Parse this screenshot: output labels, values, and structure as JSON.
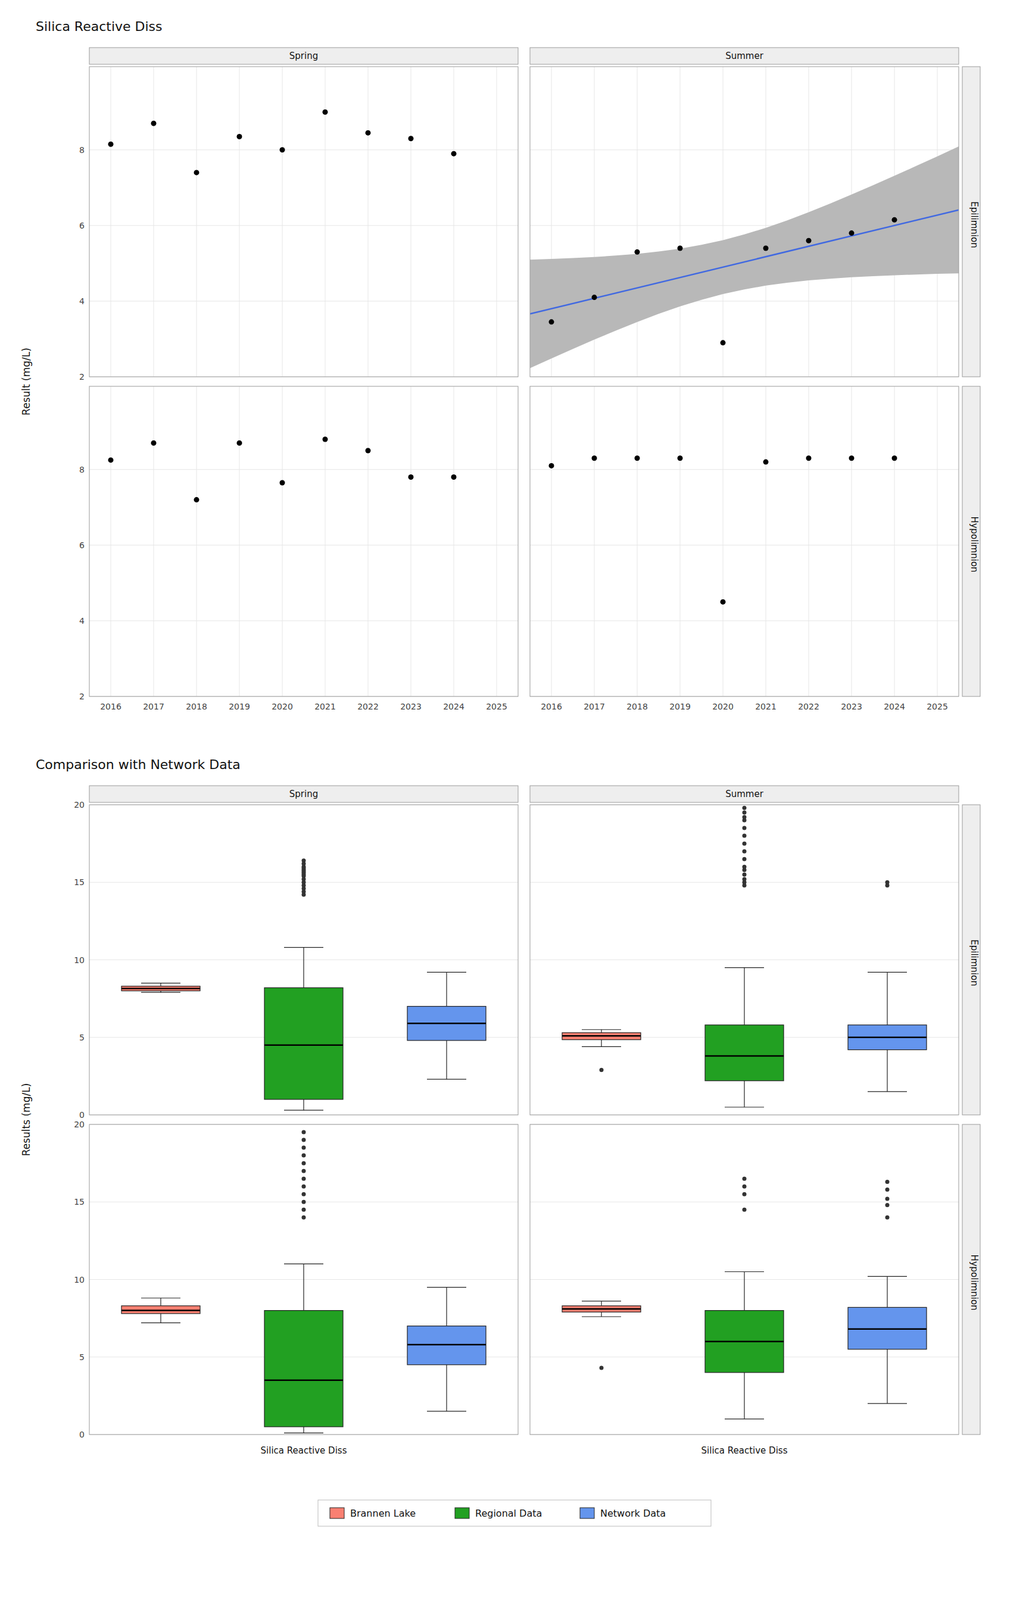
{
  "chart_data": [
    {
      "type": "scatter",
      "title": "Silica Reactive Diss",
      "ylabel": "Result (mg/L)",
      "xlim": [
        2015.5,
        2025.5
      ],
      "xticks": [
        2016,
        2017,
        2018,
        2019,
        2020,
        2021,
        2022,
        2023,
        2024,
        2025
      ],
      "ylim": [
        2.0,
        10.2
      ],
      "yticks": [
        2,
        4,
        6,
        8
      ],
      "grid": true,
      "columns": [
        "Spring",
        "Summer"
      ],
      "rows": [
        "Epilimnion",
        "Hypolimnion"
      ],
      "panels": [
        [
          {
            "series": [
              {
                "type": "scatter",
                "color": "#000000",
                "x": [
                  2016,
                  2017,
                  2018,
                  2019,
                  2020,
                  2021,
                  2022,
                  2023,
                  2024
                ],
                "values": [
                  8.15,
                  8.7,
                  7.4,
                  8.35,
                  8.0,
                  9.0,
                  8.45,
                  8.3,
                  7.9
                ]
              }
            ]
          },
          {
            "series": [
              {
                "type": "area",
                "color": "#b8b8b8",
                "x": [
                  2015.5,
                  2016,
                  2016.5,
                  2017,
                  2017.5,
                  2018,
                  2018.5,
                  2019,
                  2019.5,
                  2020,
                  2020.5,
                  2021,
                  2021.5,
                  2022,
                  2022.5,
                  2023,
                  2023.5,
                  2024,
                  2024.5,
                  2025,
                  2025.5
                ],
                "lower": [
                  2.2297,
                  2.4851,
                  2.7363,
                  2.9819,
                  3.2199,
                  3.448,
                  3.6628,
                  3.8603,
                  4.0362,
                  4.1869,
                  4.3112,
                  4.4103,
                  4.4878,
                  4.548,
                  4.5949,
                  4.6319,
                  4.6613,
                  4.6851,
                  4.7047,
                  4.7209,
                  4.7345
                ],
                "upper": [
                  5.0954,
                  5.1149,
                  5.1387,
                  5.1681,
                  5.2051,
                  5.252,
                  5.3122,
                  5.3897,
                  5.4888,
                  5.6131,
                  5.7638,
                  5.9397,
                  6.1372,
                  6.352,
                  6.5801,
                  6.8181,
                  7.0637,
                  7.3149,
                  7.5704,
                  7.8291,
                  8.0905
                ]
              },
              {
                "type": "line",
                "color": "#4169E1",
                "x": [
                  2015.5,
                  2025.5
                ],
                "values": [
                  3.6625,
                  6.4125
                ]
              },
              {
                "type": "scatter",
                "color": "#000000",
                "x": [
                  2016,
                  2017,
                  2018,
                  2019,
                  2020,
                  2021,
                  2022,
                  2023,
                  2024
                ],
                "values": [
                  3.45,
                  4.1,
                  5.3,
                  5.4,
                  2.9,
                  5.4,
                  5.6,
                  5.8,
                  6.15
                ]
              }
            ]
          }
        ],
        [
          {
            "series": [
              {
                "type": "scatter",
                "color": "#000000",
                "x": [
                  2016,
                  2017,
                  2018,
                  2019,
                  2020,
                  2021,
                  2022,
                  2023,
                  2024
                ],
                "values": [
                  8.25,
                  8.7,
                  7.2,
                  8.7,
                  7.65,
                  8.8,
                  8.5,
                  7.8,
                  7.8
                ]
              }
            ]
          },
          {
            "series": [
              {
                "type": "scatter",
                "color": "#000000",
                "x": [
                  2016,
                  2017,
                  2018,
                  2019,
                  2020,
                  2021,
                  2022,
                  2023,
                  2024
                ],
                "values": [
                  8.1,
                  8.3,
                  8.3,
                  8.3,
                  4.5,
                  8.2,
                  8.3,
                  8.3,
                  8.3
                ]
              }
            ]
          }
        ]
      ]
    },
    {
      "type": "box",
      "title": "Comparison with Network Data",
      "ylabel": "Results (mg/L)",
      "xlabel": "Silica Reactive Diss",
      "ylim": [
        0,
        20
      ],
      "yticks": [
        0,
        5,
        10,
        15,
        20
      ],
      "grid": true,
      "tick_labels": "y",
      "legend": "bottom",
      "series": [
        {
          "name": "Brannen Lake",
          "color": "#fa8072"
        },
        {
          "name": "Regional Data",
          "color": "#22a022"
        },
        {
          "name": "Network Data",
          "color": "#6495ed"
        }
      ],
      "columns": [
        "Spring",
        "Summer"
      ],
      "rows": [
        "Epilimnion",
        "Hypolimnion"
      ],
      "panels": [
        [
          {
            "boxes": [
              {
                "median": 8.15,
                "q1": 8.0,
                "q3": 8.3,
                "whislo": 7.9,
                "whishi": 8.5,
                "fliers": []
              },
              {
                "median": 4.5,
                "q1": 1.0,
                "q3": 8.2,
                "whislo": 0.3,
                "whishi": 10.8,
                "fliers": [
                  14.2,
                  14.4,
                  14.6,
                  14.8,
                  15.0,
                  15.2,
                  15.4,
                  15.5,
                  15.6,
                  15.7,
                  15.8,
                  15.9,
                  16.0,
                  16.2,
                  16.4
                ]
              },
              {
                "median": 5.9,
                "q1": 4.8,
                "q3": 7.0,
                "whislo": 2.3,
                "whishi": 9.2,
                "fliers": []
              }
            ]
          },
          {
            "boxes": [
              {
                "median": 5.1,
                "q1": 4.85,
                "q3": 5.3,
                "whislo": 4.4,
                "whishi": 5.5,
                "fliers": [
                  2.9
                ]
              },
              {
                "median": 3.8,
                "q1": 2.2,
                "q3": 5.8,
                "whislo": 0.5,
                "whishi": 9.5,
                "fliers": [
                  14.8,
                  15.0,
                  15.2,
                  15.5,
                  15.8,
                  16.0,
                  16.5,
                  17.0,
                  17.5,
                  18.0,
                  18.5,
                  19.0,
                  19.2,
                  19.5,
                  19.8
                ]
              },
              {
                "median": 5.0,
                "q1": 4.2,
                "q3": 5.8,
                "whislo": 1.5,
                "whishi": 9.2,
                "fliers": [
                  14.8,
                  15.0
                ]
              }
            ]
          }
        ],
        [
          {
            "boxes": [
              {
                "median": 8.0,
                "q1": 7.8,
                "q3": 8.3,
                "whislo": 7.2,
                "whishi": 8.8,
                "fliers": []
              },
              {
                "median": 3.5,
                "q1": 0.5,
                "q3": 8.0,
                "whislo": 0.1,
                "whishi": 11.0,
                "fliers": [
                  14.0,
                  14.5,
                  15.0,
                  15.5,
                  16.0,
                  16.5,
                  17.0,
                  17.5,
                  18.0,
                  18.5,
                  19.0,
                  19.5
                ]
              },
              {
                "median": 5.8,
                "q1": 4.5,
                "q3": 7.0,
                "whislo": 1.5,
                "whishi": 9.5,
                "fliers": []
              }
            ]
          },
          {
            "boxes": [
              {
                "median": 8.1,
                "q1": 7.9,
                "q3": 8.3,
                "whislo": 7.6,
                "whishi": 8.6,
                "fliers": [
                  4.3
                ]
              },
              {
                "median": 6.0,
                "q1": 4.0,
                "q3": 8.0,
                "whislo": 1.0,
                "whishi": 10.5,
                "fliers": [
                  14.5,
                  15.5,
                  16.0,
                  16.5
                ]
              },
              {
                "median": 6.8,
                "q1": 5.5,
                "q3": 8.2,
                "whislo": 2.0,
                "whishi": 10.2,
                "fliers": [
                  14.0,
                  14.8,
                  15.2,
                  15.8,
                  16.3
                ]
              }
            ]
          }
        ]
      ]
    }
  ]
}
